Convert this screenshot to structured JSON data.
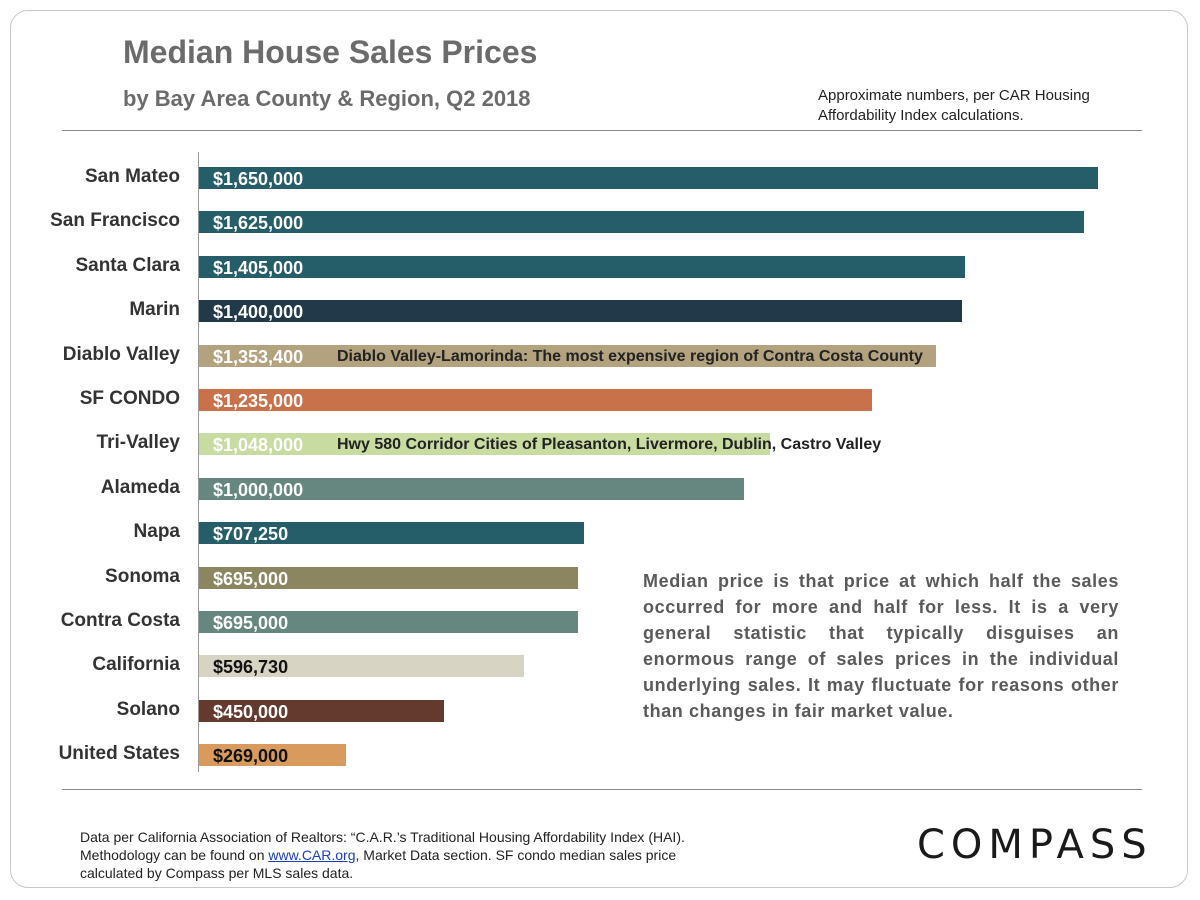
{
  "header": {
    "title": "Median House Sales Prices",
    "subtitle": "by Bay Area County & Region, Q2 2018",
    "note": "Approximate numbers, per CAR Housing Affordability Index calculations."
  },
  "chart_data": {
    "type": "bar",
    "orientation": "horizontal",
    "title": "Median House Sales Prices",
    "subtitle": "by Bay Area County & Region, Q2 2018",
    "categories": [
      "San Mateo",
      "San Francisco",
      "Santa Clara",
      "Marin",
      "Diablo Valley",
      "SF CONDO",
      "Tri-Valley",
      "Alameda",
      "Napa",
      "Sonoma",
      "Contra Costa",
      "California",
      "Solano",
      "United States"
    ],
    "values": [
      1650000,
      1625000,
      1405000,
      1400000,
      1353400,
      1235000,
      1048000,
      1000000,
      707250,
      695000,
      695000,
      596730,
      450000,
      269000
    ],
    "value_labels": [
      "$1,650,000",
      "$1,625,000",
      "$1,405,000",
      "$1,400,000",
      "$1,353,400",
      "$1,235,000",
      "$1,048,000",
      "$1,000,000",
      "$707,250",
      "$695,000",
      "$695,000",
      "$596,730",
      "$450,000",
      "$269,000"
    ],
    "colors": [
      "#255d69",
      "#255d69",
      "#255d69",
      "#22394a",
      "#b2a27e",
      "#c9714a",
      "#c8dba0",
      "#66877f",
      "#255d69",
      "#8b8560",
      "#66877f",
      "#d8d4c4",
      "#633a2d",
      "#d99a5e"
    ],
    "dark_label": [
      false,
      false,
      false,
      false,
      false,
      false,
      false,
      false,
      false,
      false,
      false,
      true,
      false,
      true
    ],
    "xlim": [
      0,
      1650000
    ],
    "grid": false,
    "annotations": [
      {
        "category": "Diablo Valley",
        "text": "Diablo Valley-Lamorinda:  The most expensive region of Contra Costa County"
      },
      {
        "category": "Tri-Valley",
        "text": "Hwy 580 Corridor Cities of Pleasanton, Livermore, Dublin, Castro Valley"
      }
    ]
  },
  "explanation": "Median price is that price at which half the sales occurred for more and half for less. It is a very general statistic that typically disguises an enormous range of sales prices in the individual underlying sales. It may fluctuate for reasons other than changes in fair market value.",
  "footnote": {
    "line1": "Data per California  Association of Realtors: “C.A.R.’s Traditional Housing Affordability Index (HAI).",
    "line2_pre": "Methodology can be found on ",
    "link": "www.CAR.org",
    "line2_post": ",  Market Data section. SF condo median sales price",
    "line3": "calculated by Compass per MLS sales data."
  },
  "logo": {
    "text": "COMPASS"
  }
}
